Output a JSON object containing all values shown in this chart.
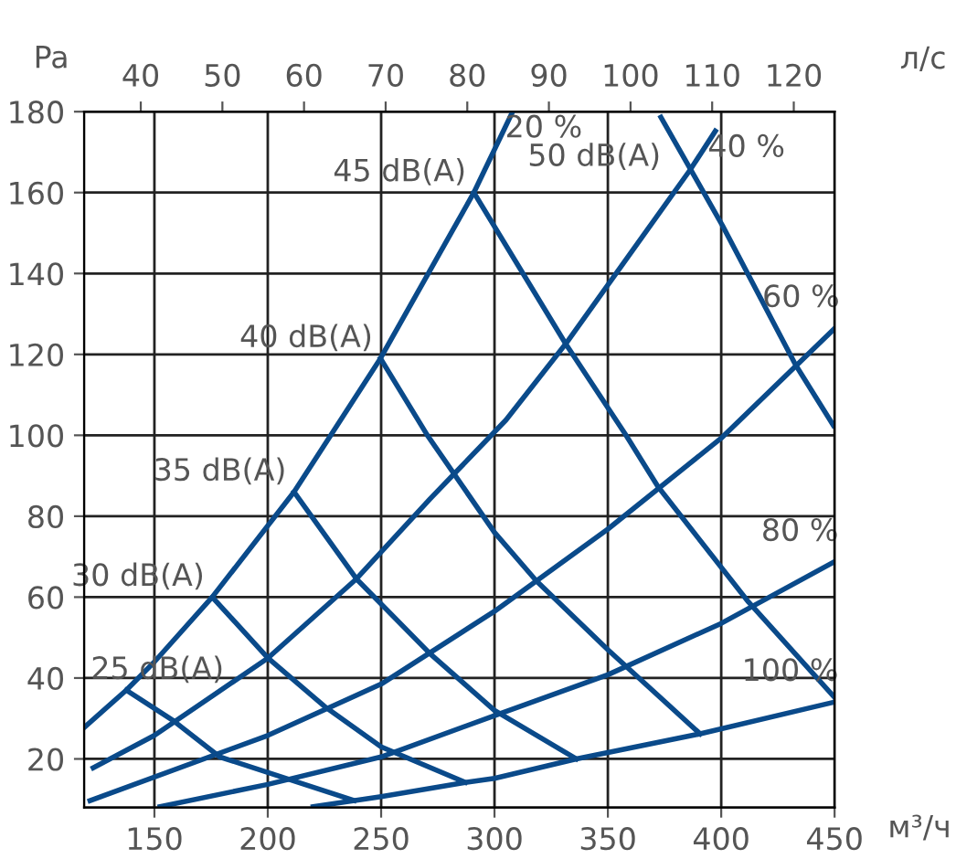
{
  "chart_data": {
    "type": "line",
    "xlabel": "м³/ч",
    "ylabel": "Pa",
    "x2label": "л/с",
    "xlim": [
      119,
      450
    ],
    "xticks": [
      150,
      200,
      250,
      300,
      350,
      400,
      450
    ],
    "x2lim": [
      33.06,
      125
    ],
    "x2ticks": [
      40,
      50,
      60,
      70,
      80,
      90,
      100,
      110,
      120
    ],
    "ylim": [
      8,
      180
    ],
    "yticks": [
      20,
      40,
      60,
      80,
      100,
      120,
      140,
      160,
      180
    ],
    "grid": true,
    "legend": false,
    "marker": "none",
    "line_style": "solid",
    "series": [
      {
        "name": "20 %",
        "color": "#0a4a8a",
        "x": [
          119.5,
          137.6,
          150,
          175.5,
          211.6,
          249.7,
          290.9,
          308
        ],
        "values": [
          28,
          37,
          44,
          60,
          86,
          119,
          160,
          180
        ]
      },
      {
        "name": "40 %",
        "color": "#0a4a8a",
        "x": [
          123,
          150,
          200,
          239.1,
          271.6,
          305.1,
          331.4,
          386.4,
          397.4
        ],
        "values": [
          17.8,
          25.8,
          44.9,
          64.5,
          84.3,
          103.8,
          122.6,
          165.7,
          175.2
        ]
      },
      {
        "name": "60 %",
        "color": "#0a4a8a",
        "x": [
          121.6,
          200,
          250,
          300,
          350,
          400,
          450
        ],
        "values": [
          9.7,
          25.8,
          38.5,
          56.5,
          76.8,
          99.3,
          126.4
        ]
      },
      {
        "name": "80 %",
        "color": "#0a4a8a",
        "x": [
          152.5,
          200,
          250,
          300,
          350,
          400,
          449.5
        ],
        "values": [
          8.2,
          13.7,
          20.5,
          30.7,
          40.8,
          53.5,
          68.6
        ]
      },
      {
        "name": "100 %",
        "color": "#0a4a8a",
        "x": [
          220,
          250,
          287.1,
          300,
          336.1,
          390.7,
          449.5
        ],
        "values": [
          8.2,
          10.7,
          14.2,
          15.2,
          20,
          26.2,
          34
        ]
      },
      {
        "name": "25 dB(A)",
        "color": "#0a4a8a",
        "x": [
          137.6,
          158.2,
          178.8,
          238.1
        ],
        "values": [
          37,
          29.5,
          20.5,
          9.7
        ]
      },
      {
        "name": "30 dB(A)",
        "color": "#0a4a8a",
        "x": [
          175.5,
          200,
          225,
          250,
          287.1
        ],
        "values": [
          60,
          45,
          33,
          23,
          14.2
        ]
      },
      {
        "name": "35 dB(A)",
        "color": "#0a4a8a",
        "x": [
          211.6,
          239.1,
          271.6,
          300,
          336.1
        ],
        "values": [
          86,
          64.5,
          46,
          32,
          20
        ]
      },
      {
        "name": "40 dB(A)",
        "color": "#0a4a8a",
        "x": [
          249.7,
          270.4,
          300,
          318.5,
          350,
          390.7
        ],
        "values": [
          119,
          100,
          76,
          64,
          47,
          26.2
        ]
      },
      {
        "name": "45 dB(A)",
        "color": "#0a4a8a",
        "x": [
          290.9,
          331.4,
          358,
          372.1,
          412,
          450
        ],
        "values": [
          160,
          122.6,
          100,
          87.3,
          58.8,
          35.2
        ]
      },
      {
        "name": "50 dB(A)",
        "color": "#0a4a8a",
        "x": [
          373.4,
          400.5,
          432.8,
          449.5
        ],
        "values": [
          178.6,
          151.9,
          117.4,
          102.4
        ]
      }
    ]
  }
}
